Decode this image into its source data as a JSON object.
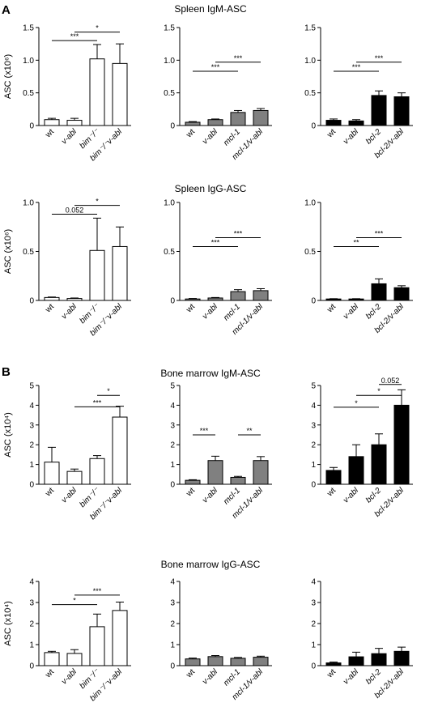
{
  "panel_labels": [
    "A",
    "B"
  ],
  "chart_data": [
    {
      "type": "bar",
      "title": "",
      "row_title": "Spleen IgM-ASC",
      "ylabel": "ASC (x10⁶)",
      "ylim": [
        0,
        1.5
      ],
      "yticks": [
        "0",
        "0.5",
        "1.0",
        "1.5"
      ],
      "ytick_values": [
        0,
        0.5,
        1.0,
        1.5
      ],
      "categories": [
        "wt",
        "v-abl",
        "bim⁻/⁻",
        "bim⁻/⁻v-abl"
      ],
      "values": [
        0.09,
        0.08,
        1.02,
        0.95
      ],
      "errors": [
        0.02,
        0.03,
        0.22,
        0.3
      ],
      "bar_color": "#ffffff",
      "significance": [
        {
          "from": 0,
          "to": 2,
          "y": 1.3,
          "label": "***"
        },
        {
          "from": 1,
          "to": 3,
          "y": 1.43,
          "label": "*"
        }
      ]
    },
    {
      "type": "bar",
      "title": "",
      "ylabel": "",
      "ylim": [
        0,
        1.5
      ],
      "yticks": [
        "0",
        "0.5",
        "1.0",
        "1.5"
      ],
      "ytick_values": [
        0,
        0.5,
        1.0,
        1.5
      ],
      "categories": [
        "wt",
        "v-abl",
        "mcl-1",
        "mcl-1/v-abl"
      ],
      "values": [
        0.05,
        0.09,
        0.2,
        0.23
      ],
      "errors": [
        0.01,
        0.01,
        0.03,
        0.03
      ],
      "bar_color": "#808080",
      "significance": [
        {
          "from": 0,
          "to": 2,
          "y": 0.83,
          "label": "***"
        },
        {
          "from": 1,
          "to": 3,
          "y": 0.97,
          "label": "***"
        }
      ]
    },
    {
      "type": "bar",
      "title": "",
      "ylabel": "",
      "ylim": [
        0,
        1.5
      ],
      "yticks": [
        "0",
        "0.5",
        "1.0",
        "1.5"
      ],
      "ytick_values": [
        0,
        0.5,
        1.0,
        1.5
      ],
      "categories": [
        "wt",
        "v-abl",
        "bcl-2",
        "bcl-2/v-abl"
      ],
      "values": [
        0.08,
        0.07,
        0.46,
        0.44
      ],
      "errors": [
        0.02,
        0.02,
        0.07,
        0.06
      ],
      "bar_color": "#000000",
      "significance": [
        {
          "from": 0,
          "to": 2,
          "y": 0.83,
          "label": "***"
        },
        {
          "from": 1,
          "to": 3,
          "y": 0.97,
          "label": "***"
        }
      ]
    },
    {
      "type": "bar",
      "title": "",
      "row_title": "Spleen IgG-ASC",
      "ylabel": "ASC (x10⁶)",
      "ylim": [
        0,
        1.0
      ],
      "yticks": [
        "0",
        "0.5",
        "1.0"
      ],
      "ytick_values": [
        0,
        0.5,
        1.0
      ],
      "categories": [
        "wt",
        "v-abl",
        "bim⁻/⁻",
        "bim⁻/⁻v-abl"
      ],
      "values": [
        0.03,
        0.02,
        0.51,
        0.55
      ],
      "errors": [
        0.005,
        0.005,
        0.33,
        0.2
      ],
      "bar_color": "#ffffff",
      "significance": [
        {
          "from": 0,
          "to": 2,
          "y": 0.88,
          "label": "0.052"
        },
        {
          "from": 1,
          "to": 3,
          "y": 0.97,
          "label": "*"
        }
      ]
    },
    {
      "type": "bar",
      "title": "",
      "ylabel": "",
      "ylim": [
        0,
        1.0
      ],
      "yticks": [
        "0",
        "0.5",
        "1.0"
      ],
      "ytick_values": [
        0,
        0.5,
        1.0
      ],
      "categories": [
        "wt",
        "v-abl",
        "mcl-1",
        "mcl-1/v-abl"
      ],
      "values": [
        0.015,
        0.025,
        0.09,
        0.1
      ],
      "errors": [
        0.005,
        0.005,
        0.02,
        0.02
      ],
      "bar_color": "#808080",
      "significance": [
        {
          "from": 0,
          "to": 2,
          "y": 0.55,
          "label": "***"
        },
        {
          "from": 1,
          "to": 3,
          "y": 0.64,
          "label": "***"
        }
      ]
    },
    {
      "type": "bar",
      "title": "",
      "ylabel": "",
      "ylim": [
        0,
        1.0
      ],
      "yticks": [
        "0",
        "0.5",
        "1.0"
      ],
      "ytick_values": [
        0,
        0.5,
        1.0
      ],
      "categories": [
        "wt",
        "v-abl",
        "bcl-2",
        "bcl-2/v-abl"
      ],
      "values": [
        0.015,
        0.015,
        0.17,
        0.13
      ],
      "errors": [
        0.003,
        0.003,
        0.05,
        0.02
      ],
      "bar_color": "#000000",
      "significance": [
        {
          "from": 0,
          "to": 2,
          "y": 0.55,
          "label": "**"
        },
        {
          "from": 1,
          "to": 3,
          "y": 0.64,
          "label": "***"
        }
      ]
    },
    {
      "type": "bar",
      "title": "",
      "row_title": "Bone marrow IgM-ASC",
      "ylabel": "ASC (x10⁴)",
      "ylim": [
        0,
        5
      ],
      "yticks": [
        "0",
        "1",
        "2",
        "3",
        "4",
        "5"
      ],
      "ytick_values": [
        0,
        1,
        2,
        3,
        4,
        5
      ],
      "categories": [
        "wt",
        "v-abl",
        "bim⁻/⁻",
        "bim⁻/⁻v-abl"
      ],
      "values": [
        1.12,
        0.65,
        1.3,
        3.4
      ],
      "errors": [
        0.75,
        0.12,
        0.15,
        0.55
      ],
      "bar_color": "#ffffff",
      "significance": [
        {
          "from": 1,
          "to": 3,
          "y": 3.92,
          "label": "***"
        },
        {
          "from": 2,
          "to": 3,
          "y": 4.5,
          "label": "*"
        }
      ]
    },
    {
      "type": "bar",
      "title": "",
      "ylabel": "",
      "ylim": [
        0,
        5
      ],
      "yticks": [
        "0",
        "1",
        "2",
        "3",
        "4",
        "5"
      ],
      "ytick_values": [
        0,
        1,
        2,
        3,
        4,
        5
      ],
      "categories": [
        "wt",
        "v-abl",
        "mcl-1",
        "mcl-1/v-abl"
      ],
      "values": [
        0.2,
        1.2,
        0.35,
        1.2
      ],
      "errors": [
        0.03,
        0.22,
        0.05,
        0.2
      ],
      "bar_color": "#808080",
      "significance": [
        {
          "from": 0,
          "to": 1,
          "y": 2.5,
          "label": "***"
        },
        {
          "from": 2,
          "to": 3,
          "y": 2.5,
          "label": "**"
        }
      ]
    },
    {
      "type": "bar",
      "title": "",
      "ylabel": "",
      "ylim": [
        0,
        5
      ],
      "yticks": [
        "0",
        "1",
        "2",
        "3",
        "4",
        "5"
      ],
      "ytick_values": [
        0,
        1,
        2,
        3,
        4,
        5
      ],
      "categories": [
        "wt",
        "v-abl",
        "bcl-2",
        "bcl-2/v-abl"
      ],
      "values": [
        0.7,
        1.4,
        2.0,
        4.0
      ],
      "errors": [
        0.15,
        0.6,
        0.55,
        0.78
      ],
      "bar_color": "#000000",
      "significance": [
        {
          "from": 0,
          "to": 2,
          "y": 3.9,
          "label": "*"
        },
        {
          "from": 1,
          "to": 3,
          "y": 4.5,
          "label": "*"
        },
        {
          "from": 2,
          "to": 3,
          "y": 5.05,
          "label": "0.052"
        }
      ]
    },
    {
      "type": "bar",
      "title": "",
      "row_title": "Bone marrow IgG-ASC",
      "ylabel": "ASC (x10⁴)",
      "ylim": [
        0,
        4
      ],
      "yticks": [
        "0",
        "1",
        "2",
        "3",
        "4"
      ],
      "ytick_values": [
        0,
        1,
        2,
        3,
        4
      ],
      "categories": [
        "wt",
        "v-abl",
        "bim⁻/⁻",
        "bim⁻/⁻v-abl"
      ],
      "values": [
        0.62,
        0.58,
        1.85,
        2.62
      ],
      "errors": [
        0.06,
        0.18,
        0.6,
        0.4
      ],
      "bar_color": "#ffffff",
      "significance": [
        {
          "from": 0,
          "to": 2,
          "y": 2.9,
          "label": "*"
        },
        {
          "from": 1,
          "to": 3,
          "y": 3.35,
          "label": "***"
        }
      ]
    },
    {
      "type": "bar",
      "title": "",
      "ylabel": "",
      "ylim": [
        0,
        4
      ],
      "yticks": [
        "0",
        "1",
        "2",
        "3",
        "4"
      ],
      "ytick_values": [
        0,
        1,
        2,
        3,
        4
      ],
      "categories": [
        "wt",
        "v-abl",
        "mcl-1",
        "mcl-1/v-abl"
      ],
      "values": [
        0.32,
        0.43,
        0.35,
        0.4
      ],
      "errors": [
        0.04,
        0.05,
        0.04,
        0.05
      ],
      "bar_color": "#808080",
      "significance": []
    },
    {
      "type": "bar",
      "title": "",
      "ylabel": "",
      "ylim": [
        0,
        4
      ],
      "yticks": [
        "0",
        "1",
        "2",
        "3",
        "4"
      ],
      "ytick_values": [
        0,
        1,
        2,
        3,
        4
      ],
      "categories": [
        "wt",
        "v-abl",
        "bcl-2",
        "bcl-2/v-abl"
      ],
      "values": [
        0.13,
        0.42,
        0.57,
        0.68
      ],
      "errors": [
        0.04,
        0.22,
        0.25,
        0.2
      ],
      "bar_color": "#000000",
      "significance": []
    }
  ]
}
